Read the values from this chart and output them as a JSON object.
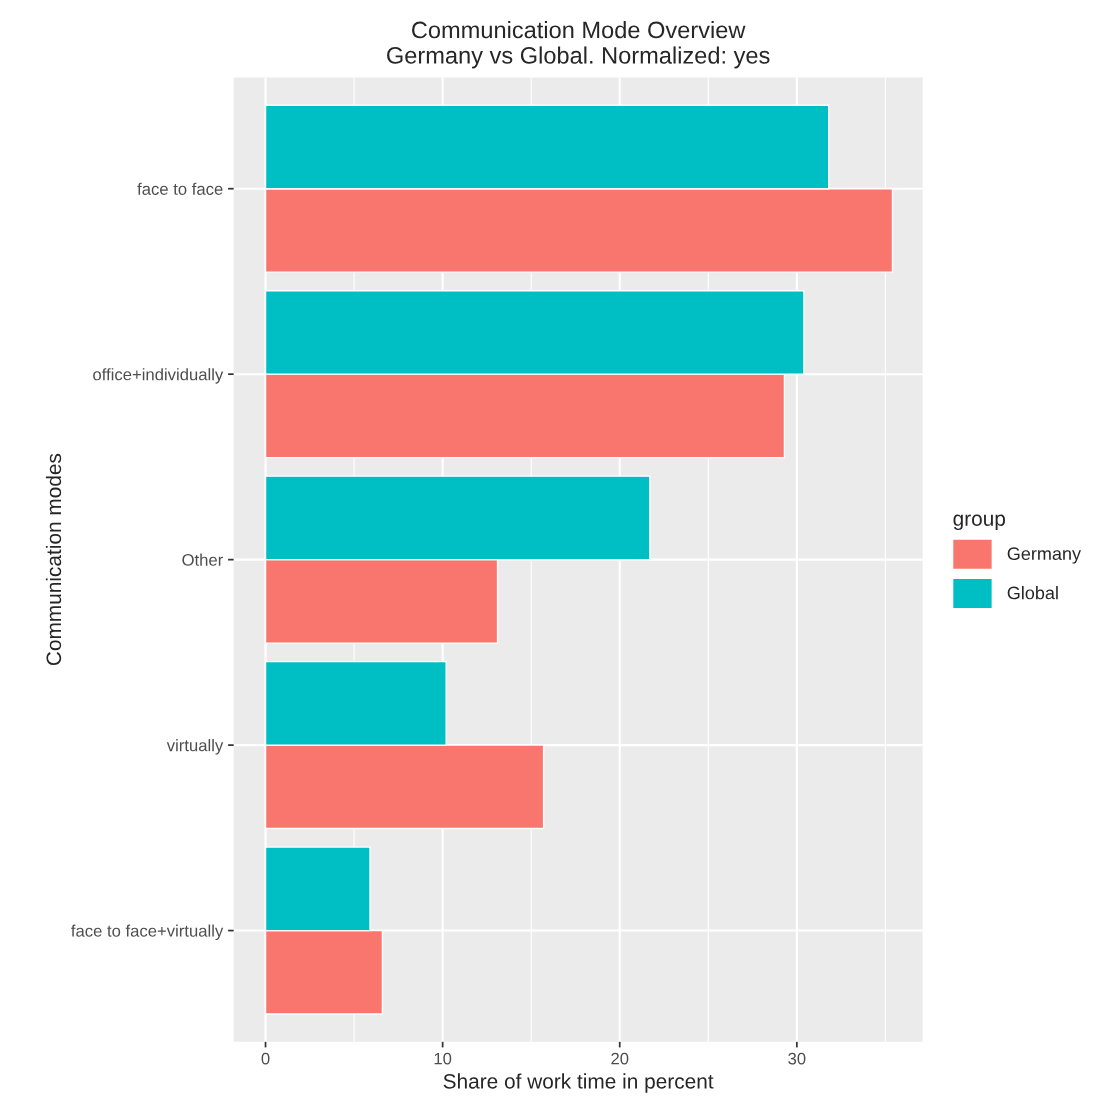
{
  "chart_data": {
    "type": "bar",
    "orientation": "horizontal",
    "title": "Communication Mode Overview\nGermany vs Global. Normalized: yes",
    "xlabel": "Share of work time in percent",
    "ylabel": "Communication modes",
    "legend_title": "group",
    "categories": [
      "face to face",
      "office+individually",
      "Other",
      "virtually",
      "face to face+virtually"
    ],
    "series": [
      {
        "name": "Germany",
        "color": "#f8766d",
        "values": [
          35.4,
          29.3,
          13.1,
          15.7,
          6.6
        ]
      },
      {
        "name": "Global",
        "color": "#00bfc4",
        "values": [
          31.8,
          30.4,
          21.7,
          10.2,
          5.9
        ]
      }
    ],
    "xlim": [
      -1.8,
      37.1
    ],
    "xticks": [
      0,
      10,
      20,
      30
    ],
    "grid": true,
    "legend": "right"
  }
}
